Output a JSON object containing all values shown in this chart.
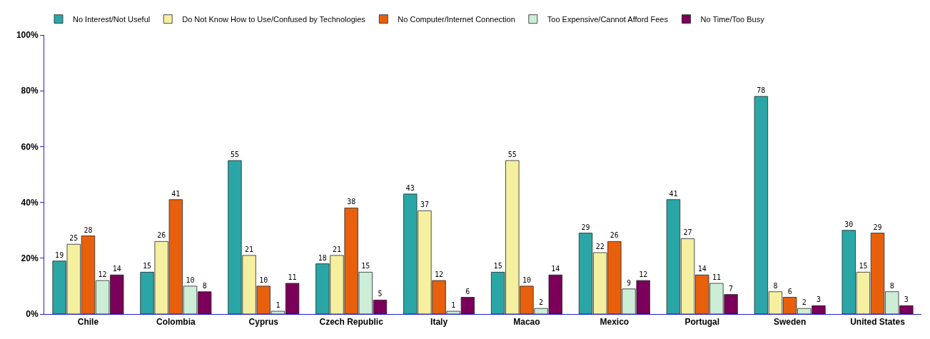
{
  "chart_data": {
    "type": "bar",
    "categories": [
      "Chile",
      "Colombia",
      "Cyprus",
      "Czech Republic",
      "Italy",
      "Macao",
      "Mexico",
      "Portugal",
      "Sweden",
      "United States"
    ],
    "series": [
      {
        "name": "No Interest/Not Useful",
        "color": "#2ba6a6",
        "values": [
          19,
          15,
          55,
          18,
          43,
          15,
          29,
          41,
          78,
          30
        ]
      },
      {
        "name": "Do Not Know How to Use/Confused by Technologies",
        "color": "#f4f0a0",
        "values": [
          25,
          26,
          21,
          21,
          37,
          55,
          22,
          27,
          8,
          15
        ]
      },
      {
        "name": "No Computer/Internet Connection",
        "color": "#e8600c",
        "values": [
          28,
          41,
          10,
          38,
          12,
          10,
          26,
          14,
          6,
          29
        ]
      },
      {
        "name": "Too Expensive/Cannot Afford Fees",
        "color": "#cdeed6",
        "values": [
          12,
          10,
          1,
          15,
          1,
          2,
          9,
          11,
          2,
          8
        ]
      },
      {
        "name": "No Time/Too Busy",
        "color": "#7a005a",
        "values": [
          14,
          8,
          11,
          5,
          6,
          14,
          12,
          7,
          3,
          3
        ]
      }
    ],
    "ylim": [
      0,
      100
    ],
    "yticks": [
      {
        "value": 0,
        "label": "0%"
      },
      {
        "value": 20,
        "label": "20%"
      },
      {
        "value": 40,
        "label": "40%"
      },
      {
        "value": 60,
        "label": "60%"
      },
      {
        "value": 80,
        "label": "80%"
      },
      {
        "value": 100,
        "label": "100%"
      }
    ],
    "grid": false,
    "legend": "top left",
    "data_labels": true
  }
}
